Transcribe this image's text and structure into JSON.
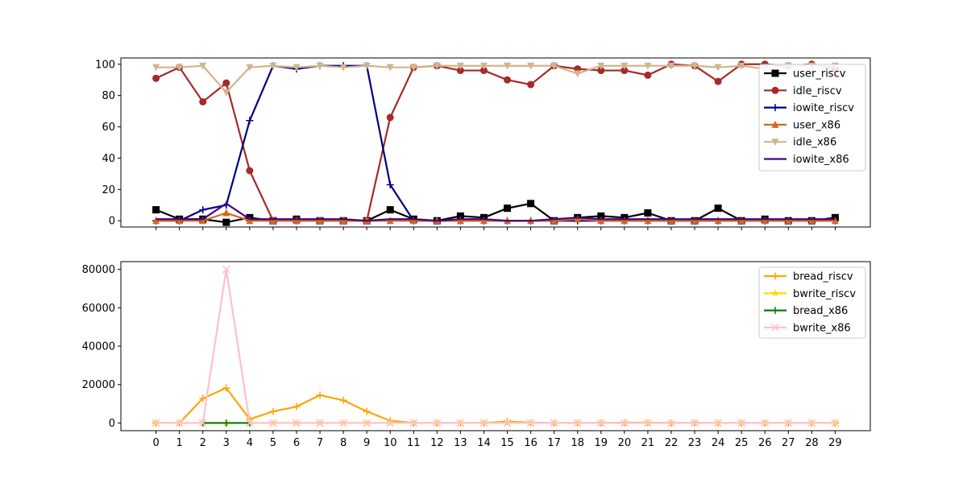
{
  "chart_data": [
    {
      "type": "line",
      "x": [
        0,
        1,
        2,
        3,
        4,
        5,
        6,
        7,
        8,
        9,
        10,
        11,
        12,
        13,
        14,
        15,
        16,
        17,
        18,
        19,
        20,
        21,
        22,
        23,
        24,
        25,
        26,
        27,
        28,
        29
      ],
      "ylim": [
        -4,
        104
      ],
      "yticks": [
        0,
        20,
        40,
        60,
        80,
        100
      ],
      "grid": false,
      "legend_position": "upper-right",
      "series": [
        {
          "name": "user_riscv",
          "color": "#000000",
          "marker": "square",
          "values": [
            7,
            1,
            1,
            -1,
            2,
            0,
            1,
            0,
            0,
            0,
            7,
            1,
            0,
            3,
            2,
            8,
            11,
            0,
            2,
            3,
            2,
            5,
            0,
            0,
            8,
            0,
            1,
            0,
            0,
            2
          ]
        },
        {
          "name": "idle_riscv",
          "color": "#a52a2a",
          "marker": "circle",
          "values": [
            91,
            98,
            76,
            88,
            32,
            0,
            0,
            0,
            0,
            0,
            66,
            98,
            99,
            96,
            96,
            90,
            87,
            99,
            97,
            96,
            96,
            93,
            100,
            99,
            89,
            100,
            100,
            99,
            100,
            97
          ]
        },
        {
          "name": "iowite_riscv",
          "color": "#000080",
          "marker": "plus",
          "values": [
            0,
            0,
            7,
            10,
            64,
            99,
            97,
            99,
            99,
            99,
            23,
            0,
            0,
            0,
            0,
            0,
            0,
            0,
            0,
            0,
            0,
            0,
            0,
            0,
            0,
            0,
            0,
            0,
            0,
            0
          ]
        },
        {
          "name": "user_x86",
          "color": "#d2691e",
          "marker": "triangle-up",
          "values": [
            0,
            0,
            0,
            5,
            0,
            0,
            0,
            0,
            0,
            0,
            0,
            0,
            0,
            0,
            0,
            0,
            0,
            0,
            1,
            0,
            0,
            0,
            0,
            0,
            0,
            0,
            0,
            0,
            0,
            0
          ]
        },
        {
          "name": "idle_x86",
          "color": "#d2b48c",
          "marker": "triangle-down",
          "values": [
            98,
            98,
            99,
            82,
            98,
            99,
            98,
            99,
            98,
            99,
            98,
            98,
            99,
            99,
            99,
            99,
            99,
            99,
            94,
            99,
            99,
            99,
            99,
            99,
            98,
            99,
            97,
            99,
            99,
            99
          ]
        },
        {
          "name": "iowite_x86",
          "color": "#4b0082",
          "marker": "none",
          "values": [
            1,
            1,
            1,
            11,
            1,
            1,
            1,
            1,
            1,
            0,
            1,
            1,
            0,
            1,
            1,
            0,
            0,
            1,
            2,
            1,
            1,
            1,
            1,
            1,
            1,
            1,
            1,
            1,
            1,
            1
          ]
        }
      ]
    },
    {
      "type": "line",
      "x": [
        0,
        1,
        2,
        3,
        4,
        5,
        6,
        7,
        8,
        9,
        10,
        11,
        12,
        13,
        14,
        15,
        16,
        17,
        18,
        19,
        20,
        21,
        22,
        23,
        24,
        25,
        26,
        27,
        28,
        29
      ],
      "ylim": [
        -4000,
        84000
      ],
      "yticks": [
        0,
        20000,
        40000,
        60000,
        80000
      ],
      "grid": false,
      "legend_position": "upper-right",
      "series": [
        {
          "name": "bread_riscv",
          "color": "#ffa500",
          "marker": "plus",
          "values": [
            0,
            0,
            12800,
            18200,
            2000,
            6000,
            8500,
            14500,
            11800,
            6000,
            1200,
            0,
            0,
            0,
            0,
            800,
            200,
            0,
            0,
            0,
            200,
            200,
            0,
            0,
            0,
            0,
            0,
            0,
            0,
            0
          ]
        },
        {
          "name": "bwrite_riscv",
          "color": "#ffd700",
          "marker": "star",
          "values": [
            0,
            0,
            0,
            0,
            0,
            0,
            0,
            0,
            0,
            0,
            0,
            0,
            0,
            0,
            0,
            0,
            0,
            0,
            0,
            0,
            0,
            0,
            0,
            0,
            0,
            0,
            0,
            0,
            0,
            0
          ]
        },
        {
          "name": "bread_x86",
          "color": "#008000",
          "marker": "plus",
          "values": [
            null,
            null,
            0,
            0,
            0,
            null,
            null,
            null,
            null,
            null,
            null,
            null,
            null,
            null,
            null,
            null,
            null,
            null,
            null,
            null,
            null,
            null,
            null,
            null,
            null,
            null,
            null,
            null,
            null,
            null
          ]
        },
        {
          "name": "bwrite_x86",
          "color": "#ffc0cb",
          "marker": "x",
          "values": [
            0,
            0,
            0,
            80000,
            0,
            0,
            0,
            0,
            0,
            0,
            0,
            0,
            0,
            0,
            0,
            0,
            0,
            0,
            0,
            0,
            0,
            0,
            0,
            0,
            0,
            0,
            0,
            0,
            0,
            0
          ]
        }
      ]
    }
  ]
}
